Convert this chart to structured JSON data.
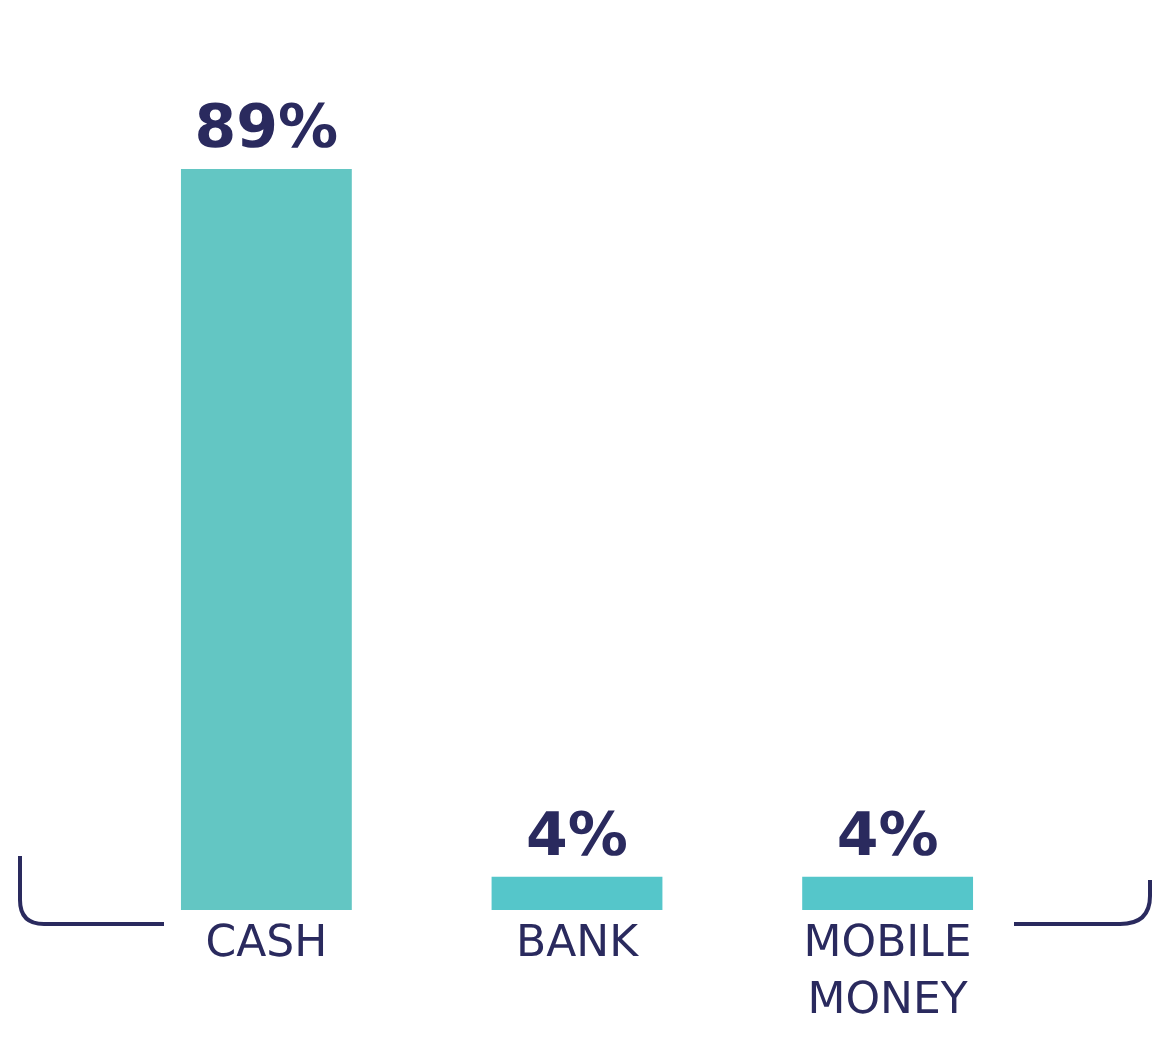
{
  "chart_data": {
    "type": "bar",
    "categories": [
      "CASH",
      "BANK",
      "MOBILE MONEY"
    ],
    "values": [
      89,
      4,
      4
    ],
    "colors": [
      "#63c6c3",
      "#55c6ca",
      "#55c6ca"
    ],
    "value_labels": [
      "89%",
      "4%",
      "4%"
    ]
  }
}
